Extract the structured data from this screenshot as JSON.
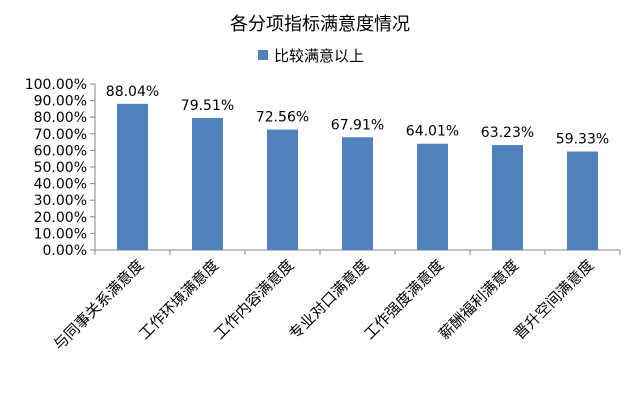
{
  "chart_data": {
    "type": "bar",
    "title": "各分项指标满意度情况",
    "categories": [
      "与同事关系满意度",
      "工作环境满意度",
      "工作内容满意度",
      "专业对口满意度",
      "工作强度满意度",
      "薪酬福利满意度",
      "晋升空间满意度"
    ],
    "series": [
      {
        "name": "比较满意以上",
        "values": [
          88.04,
          79.51,
          72.56,
          67.91,
          64.01,
          63.23,
          59.33
        ],
        "color": "#4F81BD"
      }
    ],
    "data_labels": [
      "88.04%",
      "79.51%",
      "72.56%",
      "67.91%",
      "64.01%",
      "63.23%",
      "59.33%"
    ],
    "y_ticks": [
      "0.00%",
      "10.00%",
      "20.00%",
      "30.00%",
      "40.00%",
      "50.00%",
      "60.00%",
      "70.00%",
      "80.00%",
      "90.00%",
      "100.00%"
    ],
    "ylim": [
      0,
      100
    ],
    "grid": false,
    "legend_position": "top"
  }
}
